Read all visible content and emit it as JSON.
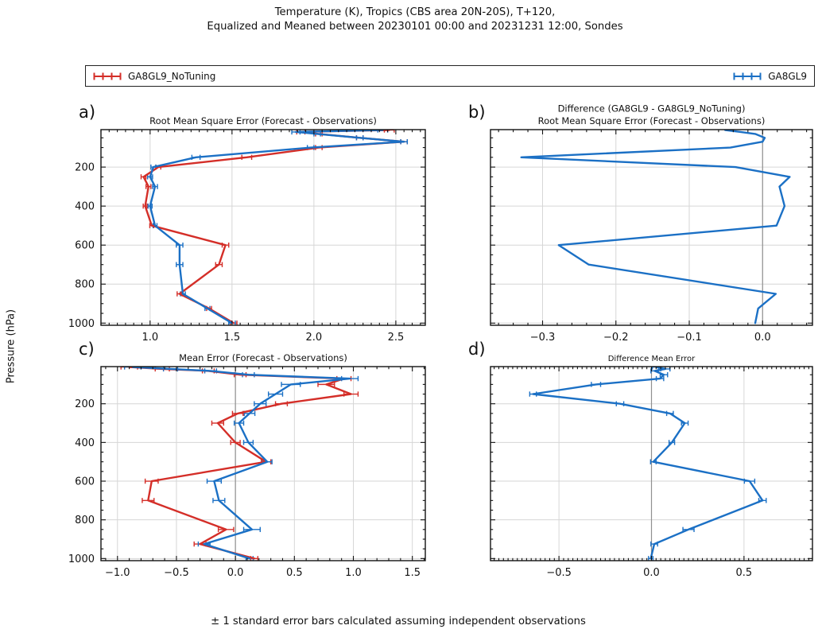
{
  "colors": {
    "red": "#d42e28",
    "blue": "#1b70c5",
    "grid": "#d6d6d6",
    "zero_line": "#909090",
    "axis": "#111111",
    "text": "#111111"
  },
  "header": {
    "title_line1": "Temperature (K), Tropics (CBS area 20N-20S), T+120,",
    "title_line2": "Equalized and Meaned between 20230101 00:00 and 20231231 12:00, Sondes"
  },
  "legend": {
    "entries": [
      {
        "label": "GA8GL9_NoTuning",
        "color_key": "red"
      },
      {
        "label": "GA8GL9",
        "color_key": "blue"
      }
    ]
  },
  "y_axis_label": "Pressure (hPa)",
  "caption": "± 1 standard error bars calculated assuming independent observations",
  "pressure_levels": [
    10,
    20,
    30,
    50,
    70,
    100,
    150,
    200,
    250,
    300,
    400,
    500,
    600,
    700,
    850,
    925,
    1000
  ],
  "chart_data": [
    {
      "id": "a",
      "panel_label": "a)",
      "type": "line",
      "title_lines": [
        "Root Mean Square Error (Forecast - Observations)"
      ],
      "title_size": 11.5,
      "xlabel": "",
      "ylabel": "Pressure (hPa)",
      "xlim": [
        0.7,
        2.68
      ],
      "xticks": [
        1.0,
        1.5,
        2.0,
        2.5
      ],
      "xtick_labels": [
        "1.0",
        "1.5",
        "2.0",
        "2.5"
      ],
      "x_minor_step": 0.05,
      "ylim": [
        8,
        1011
      ],
      "yticks": [
        200,
        400,
        600,
        800,
        1000
      ],
      "show_y_labels": true,
      "zero_line": false,
      "grid": true,
      "series": [
        {
          "name": "GA8GL9_NoTuning",
          "color_key": "red",
          "values": [
            2.46,
            1.92,
            2.03,
            2.28,
            2.55,
            2.03,
            1.59,
            1.05,
            0.96,
            0.99,
            0.97,
            1.01,
            1.46,
            1.42,
            1.18,
            1.36,
            1.51
          ],
          "errors": [
            0.03,
            0.025,
            0.02,
            0.02,
            0.02,
            0.02,
            0.03,
            0.015,
            0.015,
            0.015,
            0.012,
            0.012,
            0.02,
            0.02,
            0.015,
            0.015,
            0.02
          ]
        },
        {
          "name": "GA8GL9",
          "color_key": "blue",
          "values": [
            2.42,
            1.89,
            2.02,
            2.28,
            2.55,
            1.98,
            1.28,
            1.02,
            1.0,
            1.03,
            1.0,
            1.03,
            1.18,
            1.18,
            1.2,
            1.35,
            1.5
          ],
          "errors": [
            0.03,
            0.025,
            0.02,
            0.02,
            0.02,
            0.02,
            0.025,
            0.015,
            0.015,
            0.015,
            0.012,
            0.012,
            0.02,
            0.02,
            0.015,
            0.015,
            0.02
          ]
        }
      ]
    },
    {
      "id": "b",
      "panel_label": "b)",
      "type": "line",
      "title_lines": [
        "Difference (GA8GL9 - GA8GL9_NoTuning)",
        "Root Mean Square Error (Forecast - Observations)"
      ],
      "title_size": 11.5,
      "xlim": [
        -0.371,
        0.068
      ],
      "xticks": [
        -0.3,
        -0.2,
        -0.1,
        0.0
      ],
      "xtick_labels": [
        "−0.3",
        "−0.2",
        "−0.1",
        "0.0"
      ],
      "x_minor_step": 0.02,
      "ylim": [
        8,
        1011
      ],
      "yticks": [
        200,
        400,
        600,
        800,
        1000
      ],
      "show_y_labels": false,
      "zero_line": true,
      "grid": true,
      "series": [
        {
          "name": "GA8GL9 - GA8GL9_NoTuning",
          "color_key": "blue",
          "values": [
            -0.051,
            -0.03,
            -0.01,
            0.003,
            0.0,
            -0.044,
            -0.329,
            -0.037,
            0.037,
            0.023,
            0.03,
            0.019,
            -0.278,
            -0.237,
            0.018,
            -0.006,
            -0.01
          ],
          "errors": null
        }
      ]
    },
    {
      "id": "c",
      "panel_label": "c)",
      "type": "line",
      "title_lines": [
        "Mean Error (Forecast - Observations)"
      ],
      "title_size": 11.5,
      "xlim": [
        -1.14,
        1.61
      ],
      "xticks": [
        -1.0,
        -0.5,
        0.0,
        0.5,
        1.0,
        1.5
      ],
      "xtick_labels": [
        "−1.0",
        "−0.5",
        "0.0",
        "0.5",
        "1.0",
        "1.5"
      ],
      "x_minor_step": 0.1,
      "ylim": [
        8,
        1011
      ],
      "yticks": [
        200,
        400,
        600,
        800,
        1000
      ],
      "show_y_labels": true,
      "zero_line": true,
      "grid": true,
      "series": [
        {
          "name": "GA8GL9_NoTuning",
          "color_key": "red",
          "values": [
            -0.9,
            -0.62,
            -0.23,
            0.04,
            0.92,
            0.77,
            0.98,
            0.39,
            0.02,
            -0.15,
            0.0,
            0.26,
            -0.71,
            -0.74,
            -0.08,
            -0.3,
            0.16
          ],
          "errors": [
            0.07,
            0.06,
            0.05,
            0.05,
            0.06,
            0.07,
            0.06,
            0.05,
            0.045,
            0.05,
            0.04,
            0.04,
            0.055,
            0.05,
            0.065,
            0.05,
            0.03
          ]
        },
        {
          "name": "GA8GL9",
          "color_key": "blue",
          "values": [
            -0.87,
            -0.55,
            -0.21,
            0.11,
            0.97,
            0.47,
            0.34,
            0.21,
            0.12,
            0.03,
            0.11,
            0.27,
            -0.18,
            -0.14,
            0.14,
            -0.265,
            0.12
          ],
          "errors": [
            0.07,
            0.06,
            0.05,
            0.05,
            0.07,
            0.08,
            0.06,
            0.05,
            0.045,
            0.04,
            0.04,
            0.04,
            0.06,
            0.05,
            0.07,
            0.05,
            0.03
          ]
        }
      ]
    },
    {
      "id": "d",
      "panel_label": "d)",
      "type": "line",
      "title_lines": [
        "Difference  Mean Error"
      ],
      "title_size": 10,
      "xlim": [
        -0.87,
        0.87
      ],
      "xticks": [
        -0.5,
        0.0,
        0.5
      ],
      "xtick_labels": [
        "−0.5",
        "0.0",
        "0.5"
      ],
      "x_minor_step": 0.025,
      "ylim": [
        8,
        1011
      ],
      "yticks": [
        200,
        400,
        600,
        800,
        1000
      ],
      "show_y_labels": false,
      "zero_line": true,
      "grid": true,
      "series": [
        {
          "name": "GA8GL9 - GA8GL9_NoTuning",
          "color_key": "blue",
          "values": [
            0.025,
            0.075,
            0.017,
            0.067,
            0.046,
            -0.3,
            -0.64,
            -0.17,
            0.1,
            0.18,
            0.11,
            0.01,
            0.53,
            0.6,
            0.2,
            0.015,
            -0.004
          ],
          "errors": [
            0.02,
            0.025,
            0.02,
            0.02,
            0.02,
            0.025,
            0.018,
            0.02,
            0.018,
            0.018,
            0.015,
            0.015,
            0.028,
            0.02,
            0.03,
            0.018,
            0.012
          ]
        }
      ]
    }
  ]
}
